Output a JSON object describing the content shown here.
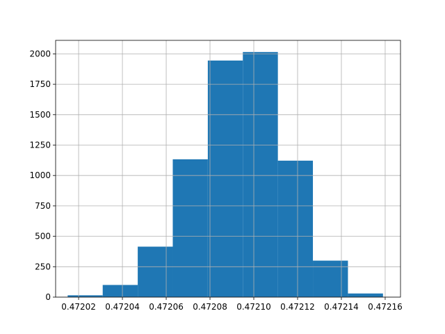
{
  "chart_data": {
    "type": "bar",
    "title": "",
    "xlabel": "",
    "ylabel": "",
    "grid": true,
    "color": "#1f77b4",
    "xlim": [
      0.4720095,
      0.472167
    ],
    "ylim": [
      0,
      2111
    ],
    "bin_edges": [
      0.472031,
      0.472047,
      0.472063,
      0.472079,
      0.472095,
      0.472111,
      0.472127,
      0.472143,
      0.472159
    ],
    "values": [
      15,
      100,
      415,
      1133,
      1945,
      2015,
      1122,
      300,
      30
    ],
    "bin_start": 0.472015,
    "x_ticks": [
      {
        "value": 0.47202,
        "label": "0.47202"
      },
      {
        "value": 0.47204,
        "label": "0.47204"
      },
      {
        "value": 0.47206,
        "label": "0.47206"
      },
      {
        "value": 0.47208,
        "label": "0.47208"
      },
      {
        "value": 0.4721,
        "label": "0.47210"
      },
      {
        "value": 0.47212,
        "label": "0.47212"
      },
      {
        "value": 0.47214,
        "label": "0.47214"
      },
      {
        "value": 0.47216,
        "label": "0.47216"
      }
    ],
    "y_ticks": [
      {
        "value": 0,
        "label": "0"
      },
      {
        "value": 250,
        "label": "250"
      },
      {
        "value": 500,
        "label": "500"
      },
      {
        "value": 750,
        "label": "750"
      },
      {
        "value": 1000,
        "label": "1000"
      },
      {
        "value": 1250,
        "label": "1250"
      },
      {
        "value": 1500,
        "label": "1500"
      },
      {
        "value": 1750,
        "label": "1750"
      },
      {
        "value": 2000,
        "label": "2000"
      }
    ]
  }
}
